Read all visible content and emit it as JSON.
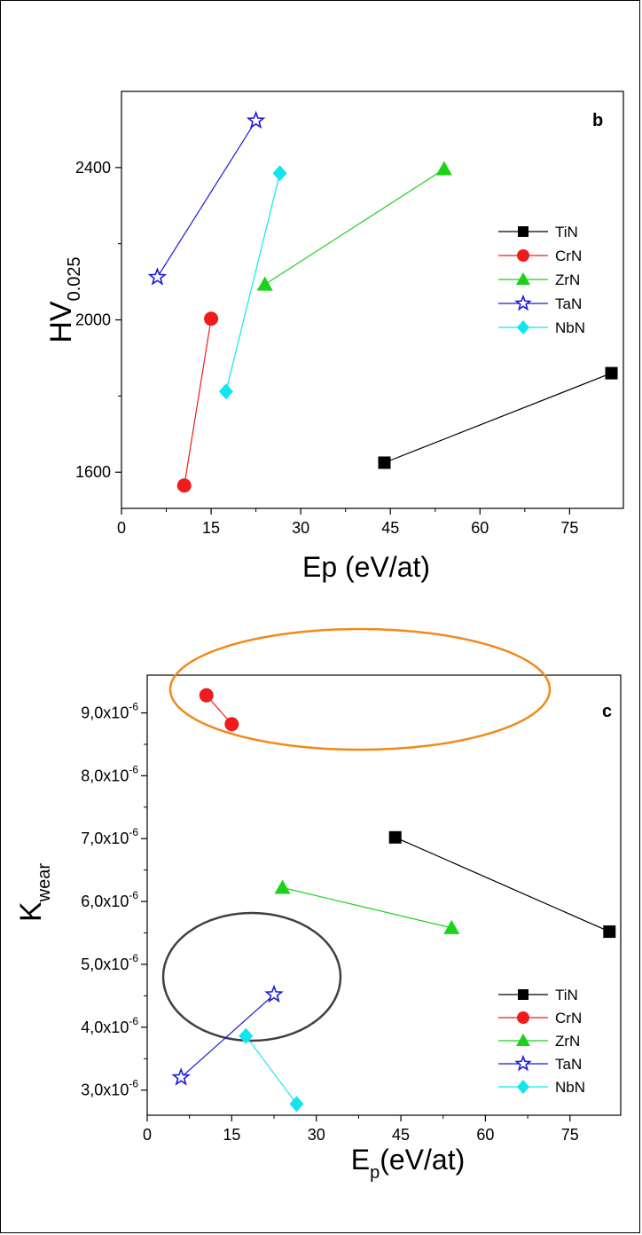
{
  "legend": [
    "TiN",
    "CrN",
    "ZrN",
    "TaN",
    "NbN"
  ],
  "colors": {
    "TiN": "#000000",
    "CrN": "#ee1c1c",
    "ZrN": "#19d219",
    "TaN": "#1a1ad6",
    "NbN": "#12e5ee",
    "orange_ellipse": "#f08a1c",
    "gray_ellipse": "#404040"
  },
  "markers": {
    "TiN": "square",
    "CrN": "circle",
    "ZrN": "triangle",
    "TaN": "star",
    "NbN": "diamond"
  },
  "chart_data": [
    {
      "type": "line",
      "panel": "b",
      "xlabel": "Ep (eV/at)",
      "ylabel_main": "HV",
      "ylabel_sub": "0.025",
      "xlim": [
        0,
        84
      ],
      "ylim": [
        1505,
        2600
      ],
      "xticks": [
        "0",
        "15",
        "30",
        "45",
        "60",
        "75"
      ],
      "xtick_values": [
        0,
        15,
        30,
        45,
        60,
        75
      ],
      "yticks": [
        "1600",
        "2000",
        "2400"
      ],
      "ytick_values": [
        1600,
        2000,
        2400
      ],
      "legend_placement": "right",
      "series": [
        {
          "name": "TiN",
          "x": [
            44,
            82
          ],
          "y": [
            1625,
            1860
          ]
        },
        {
          "name": "CrN",
          "x": [
            10.5,
            15
          ],
          "y": [
            1565,
            2003
          ]
        },
        {
          "name": "ZrN",
          "x": [
            24,
            54
          ],
          "y": [
            2093,
            2396
          ]
        },
        {
          "name": "TaN",
          "x": [
            6,
            22.5
          ],
          "y": [
            2112,
            2523
          ]
        },
        {
          "name": "NbN",
          "x": [
            17.5,
            26.5
          ],
          "y": [
            1812,
            2385
          ]
        }
      ]
    },
    {
      "type": "line",
      "panel": "c",
      "xlabel_main": "E",
      "xlabel_sub": "p",
      "xlabel_rest": "(eV/at)",
      "ylabel_main": "K",
      "ylabel_sub": "wear",
      "xlim": [
        0,
        84
      ],
      "ylim": [
        2.6e-06,
        9.6e-06
      ],
      "xticks": [
        "0",
        "15",
        "30",
        "45",
        "60",
        "75"
      ],
      "xtick_values": [
        0,
        15,
        30,
        45,
        60,
        75
      ],
      "yticks_mantissa": [
        "3,0x10",
        "4,0x10",
        "5,0x10",
        "6,0x10",
        "7,0x10",
        "8,0x10",
        "9,0x10"
      ],
      "yticks_exponent": "-6",
      "ytick_values": [
        3e-06,
        4e-06,
        5e-06,
        6e-06,
        7e-06,
        8e-06,
        9e-06
      ],
      "legend_placement": "bottom-right",
      "series": [
        {
          "name": "TiN",
          "x": [
            44,
            82
          ],
          "y": [
            7.02e-06,
            5.52e-06
          ]
        },
        {
          "name": "CrN",
          "x": [
            10.5,
            15
          ],
          "y": [
            9.28e-06,
            8.82e-06
          ]
        },
        {
          "name": "ZrN",
          "x": [
            24,
            54
          ],
          "y": [
            6.22e-06,
            5.58e-06
          ]
        },
        {
          "name": "TaN",
          "x": [
            6,
            22.5
          ],
          "y": [
            3.2e-06,
            4.52e-06
          ]
        },
        {
          "name": "NbN",
          "x": [
            17.5,
            26.5
          ],
          "y": [
            3.86e-06,
            2.78e-06
          ]
        }
      ]
    }
  ],
  "panel_b": {
    "letter": "b"
  },
  "panel_c": {
    "letter": "c"
  }
}
